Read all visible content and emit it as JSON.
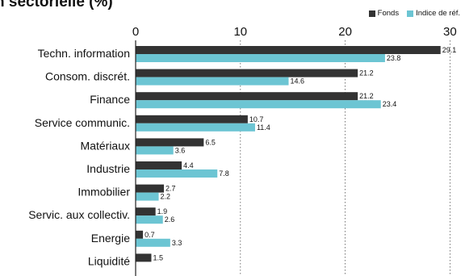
{
  "title": "n sectorielle (%)",
  "legend": [
    {
      "label": "Fonds",
      "color": "#333333"
    },
    {
      "label": "Indice de réf.",
      "color": "#6cc5d3"
    }
  ],
  "chart_data": {
    "type": "bar",
    "orientation": "horizontal",
    "title": "n sectorielle (%)",
    "categories": [
      "Techn. information",
      "Consom. discrét.",
      "Finance",
      "Service communic.",
      "Matériaux",
      "Industrie",
      "Immobilier",
      "Servic. aux collectiv.",
      "Energie",
      "Liquidité"
    ],
    "series": [
      {
        "name": "Fonds",
        "color": "#333333",
        "values": [
          29.1,
          21.2,
          21.2,
          10.7,
          6.5,
          4.4,
          2.7,
          1.9,
          0.7,
          1.5
        ]
      },
      {
        "name": "Indice de réf.",
        "color": "#6cc5d3",
        "values": [
          23.8,
          14.6,
          23.4,
          11.4,
          3.6,
          7.8,
          2.2,
          2.6,
          3.3,
          null
        ]
      }
    ],
    "xlim": [
      0,
      30
    ],
    "xticks": [
      0,
      10,
      20,
      30
    ],
    "grid": "dotted vertical",
    "legend_position": "top-right"
  }
}
